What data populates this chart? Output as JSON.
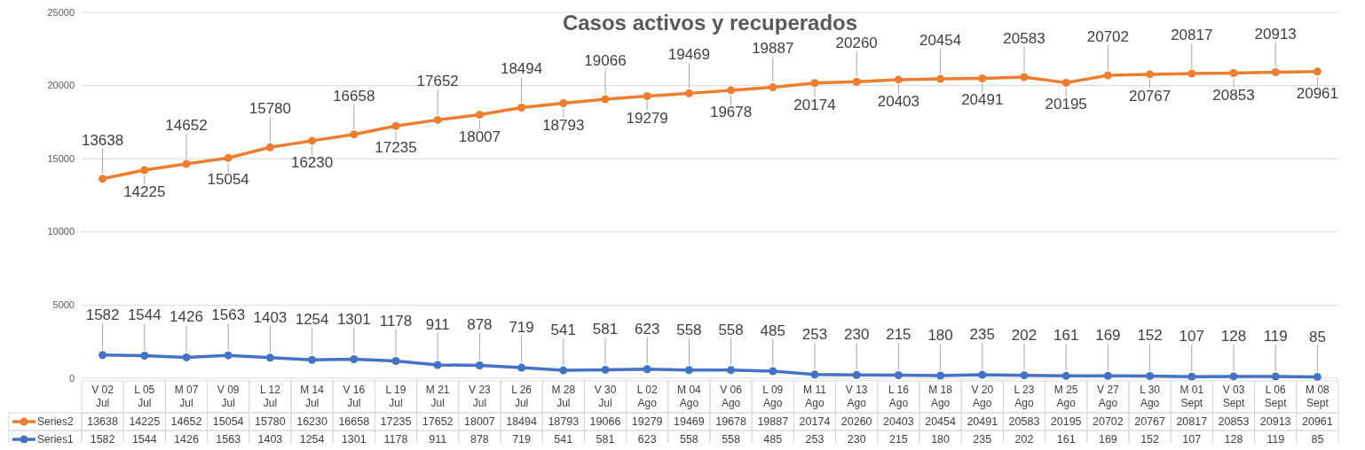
{
  "chart_data": {
    "type": "line",
    "title": "Casos activos y recuperados",
    "categories": [
      "V 02 Jul",
      "L 05 Jul",
      "M 07 Jul",
      "V 09 Jul",
      "L 12 Jul",
      "M 14 Jul",
      "V 16 Jul",
      "L 19 Jul",
      "M 21 Jul",
      "V 23 Jul",
      "L 26 Jul",
      "M 28 Jul",
      "V 30 Jul",
      "L 02 Ago",
      "M 04 Ago",
      "V 06 Ago",
      "L 09 Ago",
      "M 11 Ago",
      "V 13 Ago",
      "L 16 Ago",
      "M 18 Ago",
      "V 20 Ago",
      "L 23 Ago",
      "M 25 Ago",
      "V 27 Ago",
      "L 30 Ago",
      "M 01 Sept",
      "V 03 Sept",
      "L 06 Sept",
      "M 08 Sept"
    ],
    "series": [
      {
        "name": "Series2",
        "color": "#ed7d31",
        "values": [
          13638,
          14225,
          14652,
          15054,
          15780,
          16230,
          16658,
          17235,
          17652,
          18007,
          18494,
          18793,
          19066,
          19279,
          19469,
          19678,
          19887,
          20174,
          20260,
          20403,
          20454,
          20491,
          20583,
          20195,
          20702,
          20767,
          20817,
          20853,
          20913,
          20961
        ],
        "value_labels": [
          "13638",
          "14225",
          "14652",
          "15054",
          "15780",
          "16230",
          "16658",
          "17235",
          "17652",
          "18007",
          "18494",
          "18793",
          "19066",
          "19279",
          "19469",
          "19678",
          "19887",
          "20174",
          "20260",
          "20403",
          "20454",
          "20491",
          "20583",
          "20195",
          "20702",
          "20767",
          "20817",
          "20853",
          "20913",
          "20961"
        ]
      },
      {
        "name": "Series1",
        "color": "#4472c4",
        "values": [
          1582,
          1544,
          1426,
          1563,
          1403,
          1254,
          1301,
          1178,
          911,
          878,
          719,
          541,
          581,
          623,
          558,
          558,
          485,
          253,
          230,
          215,
          180,
          235,
          202,
          161,
          169,
          152,
          107,
          128,
          119,
          85
        ],
        "value_labels": [
          "1582",
          "1544",
          "1426",
          "1563",
          "1403",
          "1254",
          "1301",
          "1178",
          "911",
          "878",
          "719",
          "541",
          "581",
          "623",
          "558",
          "558",
          "485",
          "253",
          "230",
          "215",
          "180",
          "235",
          "202",
          "161",
          "169",
          "152",
          "107",
          "128",
          "119",
          "85"
        ]
      }
    ],
    "annotations": [
      "13638",
      "14225",
      "14652",
      "15054",
      "15780",
      "16230",
      "16658",
      "17235",
      "17652",
      "18007",
      "18494",
      "18793",
      "19066",
      "19279",
      "19469",
      "19678",
      "19887",
      "20174",
      "20260",
      "20403",
      "20454",
      "20491",
      "20583",
      "20195",
      "20702",
      "20767",
      "20817",
      "20853",
      "20913",
      "20961",
      "1582",
      "1544",
      "1426",
      "1563",
      "1403",
      "1254",
      "1301",
      "1178",
      "911",
      "878",
      "719",
      "541",
      "581",
      "623",
      "558",
      "558",
      "485",
      "253",
      "230",
      "215",
      "180",
      "235",
      "202",
      "161",
      "169",
      "152",
      "107",
      "128",
      "119",
      "85"
    ],
    "ylim": [
      0,
      25000
    ],
    "yticks": [
      0,
      5000,
      10000,
      15000,
      20000,
      25000
    ],
    "grid": "y",
    "marker": "circle",
    "line_style": "solid",
    "legend": "bottom"
  }
}
